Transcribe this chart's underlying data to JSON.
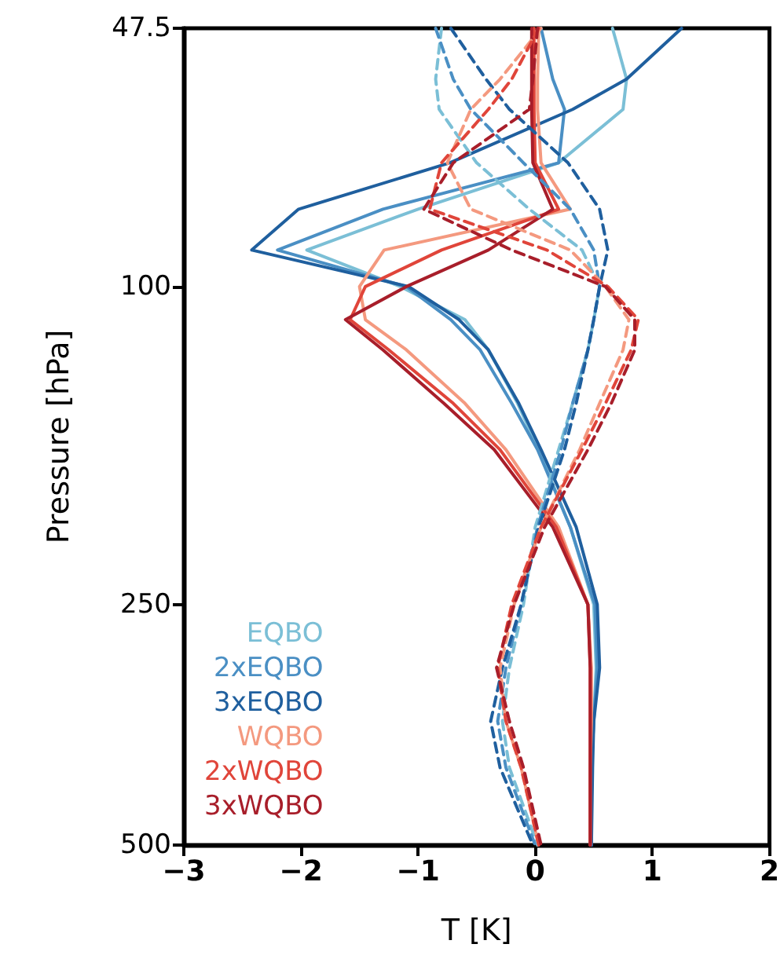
{
  "chart_data": {
    "type": "line",
    "xlabel": "T [K]",
    "ylabel": "Pressure [hPa]",
    "log": "y",
    "grid": false,
    "legend": "bottom left",
    "marker": "none",
    "xlim": [
      -3,
      2
    ],
    "xticks": [
      -3,
      -2,
      -1,
      0,
      1,
      2
    ],
    "ylim": [
      500,
      47.5
    ],
    "yticks": [
      47.5,
      100,
      250,
      500
    ],
    "series": [
      {
        "name": "EQBO",
        "color": "#7bbfd6",
        "line_style": "solid",
        "x": [
          0.66,
          0.78,
          0.75,
          0.2,
          -1.0,
          -1.95,
          -1.15,
          -0.6,
          -0.4,
          -0.15,
          0.03,
          0.3,
          0.5,
          0.52,
          0.5,
          0.48,
          0.48
        ],
        "values": [
          47.5,
          55,
          60,
          70,
          80,
          90,
          100,
          110,
          120,
          140,
          160,
          200,
          250,
          300,
          350,
          400,
          500
        ]
      },
      {
        "name": "2xEQBO",
        "color": "#4a8fc4",
        "line_style": "solid",
        "x": [
          0.05,
          0.15,
          0.25,
          0.2,
          -1.3,
          -2.2,
          -1.1,
          -0.72,
          -0.47,
          -0.2,
          0.02,
          0.3,
          0.51,
          0.53,
          0.5,
          0.48,
          0.48
        ],
        "values": [
          47.5,
          55,
          60,
          70,
          80,
          90,
          100,
          110,
          120,
          140,
          160,
          200,
          250,
          300,
          350,
          400,
          500
        ]
      },
      {
        "name": "3xEQBO",
        "color": "#1f5f9e",
        "line_style": "solid",
        "x": [
          1.25,
          0.78,
          0.32,
          -0.73,
          -2.02,
          -2.42,
          -1.08,
          -0.65,
          -0.4,
          -0.14,
          0.05,
          0.35,
          0.53,
          0.55,
          0.5,
          0.49,
          0.48
        ],
        "values": [
          47.5,
          55,
          60,
          70,
          80,
          90,
          100,
          110,
          120,
          140,
          160,
          200,
          250,
          300,
          350,
          400,
          500
        ]
      },
      {
        "name": "WQBO",
        "color": "#f4997f",
        "line_style": "solid",
        "x": [
          0.03,
          0.02,
          0.02,
          0.05,
          0.3,
          -1.29,
          -1.5,
          -1.45,
          -1.1,
          -0.6,
          -0.25,
          0.2,
          0.45,
          0.48,
          0.48,
          0.47,
          0.47
        ],
        "values": [
          47.5,
          55,
          60,
          70,
          80,
          90,
          100,
          110,
          120,
          140,
          160,
          200,
          250,
          300,
          350,
          400,
          500
        ]
      },
      {
        "name": "2xWQBO",
        "color": "#e0453a",
        "line_style": "solid",
        "x": [
          -0.01,
          -0.01,
          -0.01,
          0.0,
          0.2,
          -0.8,
          -1.45,
          -1.58,
          -1.25,
          -0.7,
          -0.3,
          0.18,
          0.45,
          0.47,
          0.47,
          0.47,
          0.47
        ],
        "values": [
          47.5,
          55,
          60,
          70,
          80,
          90,
          100,
          110,
          120,
          140,
          160,
          200,
          250,
          300,
          350,
          400,
          500
        ]
      },
      {
        "name": "3xWQBO",
        "color": "#a81e2a",
        "line_style": "solid",
        "x": [
          -0.03,
          -0.03,
          -0.03,
          -0.02,
          0.15,
          -0.4,
          -1.1,
          -1.62,
          -1.3,
          -0.78,
          -0.35,
          0.15,
          0.45,
          0.47,
          0.47,
          0.47,
          0.47
        ],
        "values": [
          47.5,
          55,
          60,
          70,
          80,
          90,
          100,
          110,
          120,
          140,
          160,
          200,
          250,
          300,
          350,
          400,
          500
        ]
      },
      {
        "color": "#7bbfd6",
        "line_style": "dashed",
        "x": [
          -0.8,
          -0.85,
          -0.82,
          -0.5,
          -0.05,
          0.4,
          0.55,
          0.5,
          0.45,
          0.32,
          0.2,
          0.0,
          -0.1,
          -0.22,
          -0.28,
          -0.22,
          0.02
        ],
        "values": [
          47.5,
          55,
          60,
          70,
          80,
          90,
          100,
          110,
          120,
          140,
          160,
          200,
          250,
          300,
          350,
          400,
          500
        ]
      },
      {
        "color": "#4a8fc4",
        "line_style": "dashed",
        "x": [
          -0.85,
          -0.7,
          -0.55,
          -0.1,
          0.3,
          0.5,
          0.55,
          0.5,
          0.45,
          0.32,
          0.22,
          0.02,
          -0.12,
          -0.25,
          -0.32,
          -0.25,
          0.0
        ],
        "values": [
          47.5,
          55,
          60,
          70,
          80,
          90,
          100,
          110,
          120,
          140,
          160,
          200,
          250,
          300,
          350,
          400,
          500
        ]
      },
      {
        "color": "#1f5f9e",
        "line_style": "dashed",
        "x": [
          -0.72,
          -0.42,
          -0.22,
          0.28,
          0.55,
          0.62,
          0.55,
          0.5,
          0.45,
          0.35,
          0.25,
          0.03,
          -0.12,
          -0.28,
          -0.38,
          -0.3,
          -0.02
        ],
        "values": [
          47.5,
          55,
          60,
          70,
          80,
          90,
          100,
          110,
          120,
          140,
          160,
          200,
          250,
          300,
          350,
          400,
          500
        ]
      },
      {
        "color": "#f4997f",
        "line_style": "dashed",
        "x": [
          0.05,
          -0.3,
          -0.55,
          -0.75,
          -0.55,
          0.3,
          0.6,
          0.8,
          0.75,
          0.55,
          0.38,
          0.05,
          -0.18,
          -0.3,
          -0.25,
          -0.12,
          0.03
        ],
        "values": [
          47.5,
          55,
          60,
          70,
          80,
          90,
          100,
          110,
          120,
          140,
          160,
          200,
          250,
          300,
          350,
          400,
          500
        ]
      },
      {
        "color": "#e0453a",
        "line_style": "dashed",
        "x": [
          0.03,
          -0.2,
          -0.4,
          -0.8,
          -0.9,
          0.1,
          0.62,
          0.88,
          0.82,
          0.6,
          0.4,
          0.05,
          -0.2,
          -0.32,
          -0.25,
          -0.12,
          0.03
        ],
        "values": [
          47.5,
          55,
          60,
          70,
          80,
          90,
          100,
          110,
          120,
          140,
          160,
          200,
          250,
          300,
          350,
          400,
          500
        ]
      },
      {
        "color": "#a81e2a",
        "line_style": "dashed",
        "x": [
          0.02,
          -0.02,
          -0.05,
          -0.7,
          -0.95,
          -0.2,
          0.6,
          0.85,
          0.85,
          0.65,
          0.45,
          0.08,
          -0.18,
          -0.33,
          -0.22,
          -0.1,
          0.05
        ],
        "values": [
          47.5,
          55,
          60,
          70,
          80,
          90,
          100,
          110,
          120,
          140,
          160,
          200,
          250,
          300,
          350,
          400,
          500
        ]
      }
    ]
  }
}
